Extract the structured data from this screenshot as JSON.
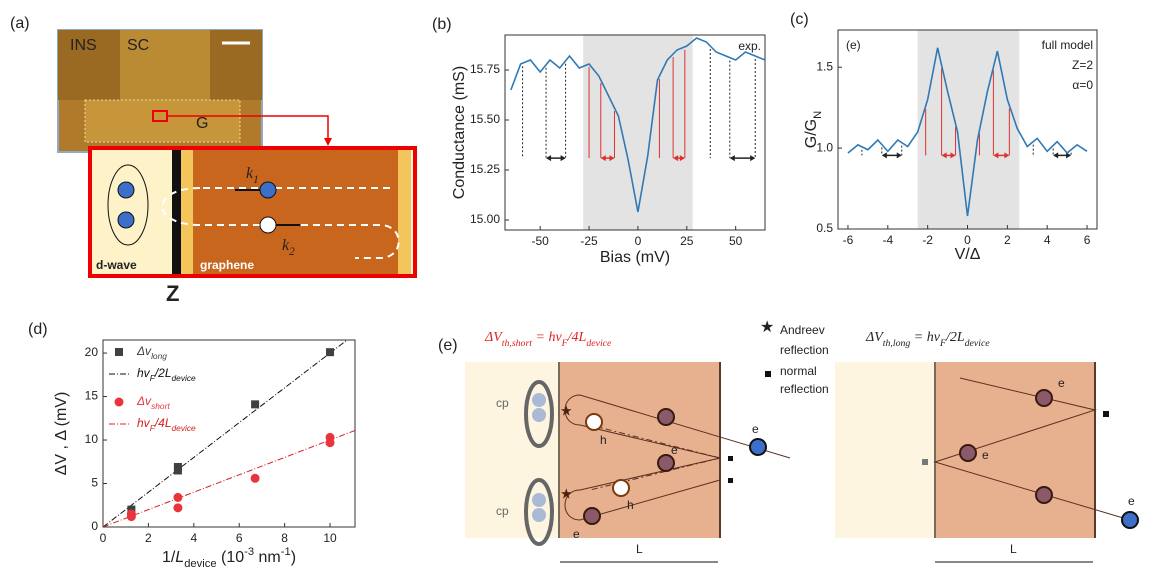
{
  "chart_data": [
    {
      "type": "line",
      "panel": "(b)",
      "y_label": [
        {
          "t": "Conductance (mS)"
        }
      ],
      "x_label": [
        {
          "t": "Bias (mV)"
        }
      ],
      "annotation": "exp.",
      "x": [
        -65,
        -60,
        -55,
        -50,
        -45,
        -40,
        -35,
        -30,
        -25,
        -20,
        -15,
        -10,
        -5,
        0,
        5,
        10,
        15,
        20,
        25,
        30,
        35,
        40,
        45,
        50,
        55,
        60,
        65
      ],
      "series": [
        {
          "color": "#2f7ab5",
          "values": [
            15.65,
            15.78,
            15.8,
            15.74,
            15.8,
            15.76,
            15.82,
            15.76,
            15.78,
            15.72,
            15.62,
            15.52,
            15.3,
            15.04,
            15.32,
            15.7,
            15.8,
            15.85,
            15.87,
            15.91,
            15.89,
            15.84,
            15.82,
            15.8,
            15.84,
            15.82,
            15.8
          ]
        }
      ],
      "xlim": [
        -68,
        65
      ],
      "ylim": [
        14.95,
        15.925
      ],
      "xticks": [
        -50,
        -25,
        0,
        25,
        50
      ],
      "yticks": [
        {
          "value": 15,
          "label": "15.00"
        },
        15.25,
        {
          "value": 15.5,
          "label": "15.50"
        },
        15.75
      ],
      "shaded_range": [
        -28,
        28
      ],
      "shade_color": "#e3e3e3",
      "guides": [
        {
          "color": "#222222",
          "x": [
            -59,
            -47,
            -37
          ]
        },
        {
          "color": "#e03030",
          "x": [
            -25,
            -19,
            -12
          ]
        },
        {
          "color": "#e03030",
          "x": [
            11,
            18,
            24
          ]
        },
        {
          "color": "#222222",
          "x": [
            37,
            47,
            60
          ]
        }
      ]
    },
    {
      "type": "line",
      "panel": "(c)",
      "y_label": [
        {
          "t": "G/G"
        },
        {
          "t": "N",
          "s": "sub"
        }
      ],
      "x_label": [
        {
          "t": "V/Δ"
        }
      ],
      "annotations": [
        "(e)",
        "full model",
        "Z=2",
        "α=0"
      ],
      "x": [
        -6,
        -5.5,
        -5,
        -4.5,
        -4,
        -3.5,
        -3,
        -2.5,
        -2,
        -1.5,
        -1,
        -0.5,
        0,
        0.5,
        1,
        1.5,
        2,
        2.5,
        3,
        3.5,
        4,
        4.5,
        5,
        5.5,
        6
      ],
      "series": [
        {
          "color": "#2f7ab5",
          "values": [
            0.97,
            1.02,
            0.99,
            1.05,
            0.98,
            1.05,
            1.01,
            1.1,
            1.3,
            1.62,
            1.35,
            1.1,
            0.58,
            1.05,
            1.35,
            1.6,
            1.3,
            1.12,
            1.01,
            1.06,
            0.98,
            1.04,
            0.97,
            1.02,
            0.98
          ]
        }
      ],
      "xlim": [
        -6.5,
        6.5
      ],
      "ylim": [
        0.5,
        1.73
      ],
      "xticks": [
        -6,
        -4,
        -2,
        0,
        2,
        4,
        6
      ],
      "yticks": [
        0.5,
        {
          "value": 1,
          "label": "1.0"
        },
        1.5
      ],
      "shaded_range": [
        -2.5,
        2.6
      ],
      "shade_color": "#e3e3e3",
      "guides": [
        {
          "color": "#222222",
          "x": [
            -5.3,
            -4.3,
            -3.3
          ]
        },
        {
          "color": "#e03030",
          "x": [
            -2.1,
            -1.3,
            -0.6
          ]
        },
        {
          "color": "#e03030",
          "x": [
            0.6,
            1.3,
            2.1
          ]
        },
        {
          "color": "#222222",
          "x": [
            3.3,
            4.3,
            5.2
          ]
        }
      ]
    },
    {
      "type": "scatter",
      "panel": "(d)",
      "y_label": [
        {
          "t": "ΔV , Δ (mV)"
        }
      ],
      "x_label": [
        {
          "t": "1/"
        },
        {
          "t": "L",
          "s": "i"
        },
        {
          "t": "device",
          "s": "sub"
        },
        {
          "t": "  (10"
        },
        {
          "t": "-3",
          "s": "super"
        },
        {
          "t": " nm"
        },
        {
          "t": "-1",
          "s": "super"
        },
        {
          "t": ")"
        }
      ],
      "xlim": [
        0,
        11.1
      ],
      "ylim": [
        0,
        21.5
      ],
      "xticks": [
        0,
        2,
        4,
        6,
        8,
        10
      ],
      "yticks": [
        0,
        5,
        10,
        15,
        20
      ],
      "legend": "upper left",
      "series": [
        {
          "name": [
            {
              "t": "Δv"
            },
            {
              "t": "long",
              "s": "sub"
            }
          ],
          "color": "#404040",
          "marker": "square",
          "x": [
            1.25,
            3.3,
            3.3,
            6.7,
            10
          ],
          "values": [
            2,
            6.5,
            6.9,
            14.1,
            20.1
          ]
        },
        {
          "name": [
            {
              "t": "Δv"
            },
            {
              "t": "short",
              "s": "sub"
            }
          ],
          "color": "#e8343a",
          "marker": "circle",
          "x": [
            1.25,
            1.25,
            3.3,
            3.3,
            6.7,
            10,
            10
          ],
          "values": [
            1.2,
            1.5,
            3.4,
            2.2,
            5.6,
            9.7,
            10.3
          ]
        }
      ],
      "lines": [
        {
          "name": [
            {
              "t": "hv"
            },
            {
              "t": "F",
              "s": "sub"
            },
            {
              "t": "/2L"
            },
            {
              "t": "device",
              "s": "sub"
            }
          ],
          "color": "#111111",
          "x": [
            0,
            10.75
          ],
          "values": [
            0,
            21.5
          ]
        },
        {
          "name": [
            {
              "t": "hv"
            },
            {
              "t": "F",
              "s": "sub"
            },
            {
              "t": "/4L"
            },
            {
              "t": "device",
              "s": "sub"
            }
          ],
          "color": "#d42020",
          "x": [
            0,
            11.1
          ],
          "values": [
            0,
            11.1
          ]
        }
      ]
    }
  ],
  "panel_a": {
    "label": "(a)",
    "ins": "INS",
    "sc": "SC",
    "g": "G",
    "dwave": "d-wave",
    "graphene": "graphene",
    "z": "Z",
    "k1": [
      {
        "t": "k"
      },
      {
        "t": "1",
        "s": "sub"
      }
    ],
    "k2": [
      {
        "t": "k"
      },
      {
        "t": "2",
        "s": "sub"
      }
    ]
  },
  "panel_e": {
    "label": "(e)",
    "short": [
      {
        "t": "ΔV"
      },
      {
        "t": "th,short",
        "s": "sub"
      },
      {
        "t": " = hv"
      },
      {
        "t": "F",
        "s": "sub"
      },
      {
        "t": "/4L"
      },
      {
        "t": "device",
        "s": "sub"
      }
    ],
    "long": [
      {
        "t": "ΔV"
      },
      {
        "t": "th,long",
        "s": "sub"
      },
      {
        "t": " = hv"
      },
      {
        "t": "F",
        "s": "sub"
      },
      {
        "t": "/2L"
      },
      {
        "t": "device",
        "s": "sub"
      }
    ],
    "andreev": [
      "Andreev",
      "reflection"
    ],
    "normal": [
      "normal",
      "reflection"
    ],
    "cp": "cp",
    "h": "h",
    "e": "e",
    "L": "L"
  }
}
